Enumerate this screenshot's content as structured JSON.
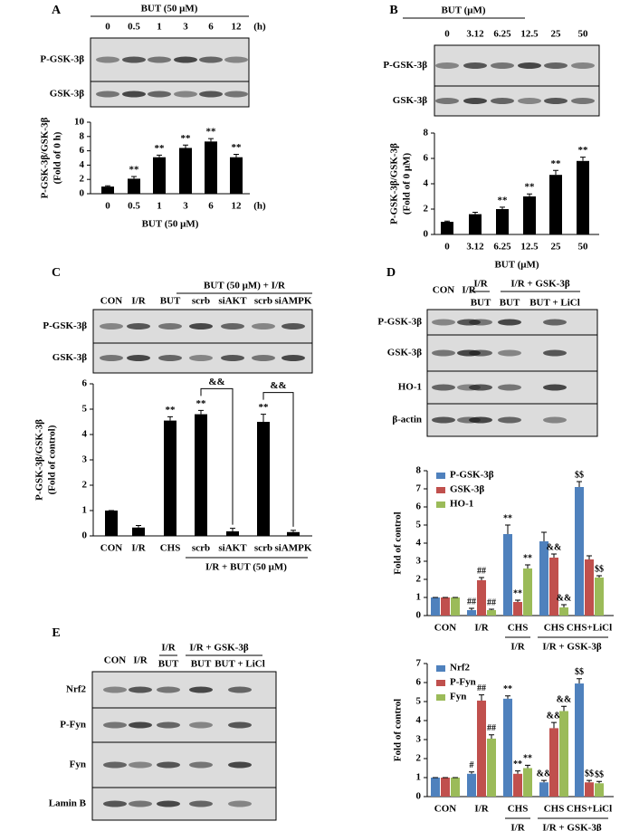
{
  "chart_data": [
    {
      "panel_label": "A",
      "type": "bar",
      "blot": {
        "header": "BUT (50 μM)",
        "lanes": [
          "0",
          "0.5",
          "1",
          "3",
          "6",
          "12"
        ],
        "lane_unit": "(h)",
        "rows": [
          "P-GSK-3β",
          "GSK-3β"
        ]
      },
      "y_label": [
        "P-GSK-3β/GSK-3β",
        "(Fold of 0 h)"
      ],
      "x_label": "BUT (50 μM)",
      "x_unit": "(h)",
      "categories": [
        "0",
        "0.5",
        "1",
        "3",
        "6",
        "12"
      ],
      "series": [
        {
          "color": "#000000",
          "values": [
            1,
            2.1,
            5.1,
            6.4,
            7.3,
            5.1
          ],
          "errors": [
            0.1,
            0.3,
            0.3,
            0.4,
            0.4,
            0.4
          ],
          "annotations": [
            null,
            "**",
            "**",
            "**",
            "**",
            "**"
          ]
        }
      ],
      "ylim": [
        0,
        10
      ],
      "yticks": [
        0,
        2,
        4,
        6,
        8,
        10
      ]
    },
    {
      "panel_label": "B",
      "type": "bar",
      "blot": {
        "header": "BUT (μM)",
        "lanes": [
          "0",
          "3.12",
          "6.25",
          "12.5",
          "25",
          "50"
        ],
        "rows": [
          "P-GSK-3β",
          "GSK-3β"
        ]
      },
      "y_label": [
        "P-GSK-3β/GSK-3β",
        "(Fold of 0 μM)"
      ],
      "x_label": "BUT (μM)",
      "categories": [
        "0",
        "3.12",
        "6.25",
        "12.5",
        "25",
        "50"
      ],
      "series": [
        {
          "color": "#000000",
          "values": [
            1,
            1.6,
            2.0,
            3.0,
            4.7,
            5.8
          ],
          "errors": [
            0.05,
            0.15,
            0.15,
            0.2,
            0.35,
            0.3
          ],
          "annotations": [
            null,
            null,
            "**",
            "**",
            "**",
            "**"
          ]
        }
      ],
      "ylim": [
        0,
        8
      ],
      "yticks": [
        0,
        2,
        4,
        6,
        8
      ]
    },
    {
      "panel_label": "C",
      "type": "bar",
      "blot": {
        "header": "BUT (50 μM) + I/R",
        "lanes": [
          "CON",
          "I/R",
          "BUT",
          "scrb",
          "siAKT",
          "scrb",
          "siAMPK"
        ],
        "rows": [
          "P-GSK-3β",
          "GSK-3β"
        ]
      },
      "y_label": [
        "P-GSK-3β/GSK-3β",
        "(Fold of control)"
      ],
      "categories": [
        "CON",
        "I/R",
        "CHS",
        "scrb",
        "siAKT",
        "scrb",
        "siAMPK"
      ],
      "x_group_labels": [
        "I/R + BUT (50 μM)"
      ],
      "series": [
        {
          "color": "#000000",
          "values": [
            1,
            0.33,
            4.55,
            4.8,
            0.18,
            4.5,
            0.15
          ],
          "errors": [
            0,
            0.08,
            0.15,
            0.15,
            0.12,
            0.3,
            0.07
          ],
          "annotations": [
            null,
            null,
            "**",
            "**",
            null,
            "**",
            null
          ]
        }
      ],
      "brackets": [
        "&&",
        "&&"
      ],
      "ylim": [
        0,
        6
      ],
      "yticks": [
        0,
        1,
        2,
        3,
        4,
        5,
        6
      ]
    },
    {
      "panel_label": "D",
      "type": "bar",
      "blot": {
        "lane_groups": [
          "I/R",
          "I/R + GSK-3β"
        ],
        "lanes": [
          "CON",
          "I/R",
          "BUT",
          "BUT",
          "BUT + LiCl"
        ],
        "rows": [
          "P-GSK-3β",
          "GSK-3β",
          "HO-1",
          "β-actin"
        ]
      },
      "y_label": [
        "Fold of control"
      ],
      "categories": [
        "CON",
        "I/R",
        "CHS",
        "CHS",
        "CHS+LiCl"
      ],
      "x_group_labels": [
        "I/R",
        "I/R + GSK-3β"
      ],
      "legend": "upper left",
      "series": [
        {
          "name": "P-GSK-3β",
          "color": "#4f81bd",
          "values": [
            1,
            0.3,
            4.5,
            4.1,
            7.1
          ],
          "errors": [
            0,
            0.1,
            0.5,
            0.5,
            0.3
          ],
          "annotations": [
            null,
            "##",
            "**",
            null,
            "$$"
          ]
        },
        {
          "name": "GSK-3β",
          "color": "#c0504d",
          "values": [
            1,
            1.95,
            0.75,
            3.2,
            3.1
          ],
          "errors": [
            0,
            0.15,
            0.1,
            0.2,
            0.2
          ],
          "annotations": [
            null,
            "##",
            "**",
            "&&",
            null
          ]
        },
        {
          "name": "HO-1",
          "color": "#9bbb59",
          "values": [
            1,
            0.3,
            2.6,
            0.45,
            2.1
          ],
          "errors": [
            0,
            0.05,
            0.2,
            0.15,
            0.1
          ],
          "annotations": [
            null,
            "##",
            "**",
            "&&",
            "$$"
          ]
        }
      ],
      "ylim": [
        0,
        8
      ],
      "yticks": [
        0,
        1,
        2,
        3,
        4,
        5,
        6,
        7,
        8
      ]
    },
    {
      "panel_label": "E",
      "type": "bar",
      "blot": {
        "lane_groups": [
          "I/R",
          "I/R + GSK-3β"
        ],
        "lanes": [
          "CON",
          "I/R",
          "BUT",
          "BUT",
          "BUT + LiCl"
        ],
        "rows": [
          "Nrf2",
          "P-Fyn",
          "Fyn",
          "Lamin B"
        ]
      },
      "y_label": [
        "Fold of control"
      ],
      "categories": [
        "CON",
        "I/R",
        "CHS",
        "CHS",
        "CHS+LiCl"
      ],
      "x_group_labels": [
        "I/R",
        "I/R + GSK-3β"
      ],
      "legend": "upper left",
      "series": [
        {
          "name": "Nrf2",
          "color": "#4f81bd",
          "values": [
            1,
            1.2,
            5.15,
            0.75,
            5.95
          ],
          "errors": [
            0,
            0.1,
            0.15,
            0.1,
            0.25
          ],
          "annotations": [
            null,
            "#",
            "**",
            "&&",
            "$$"
          ]
        },
        {
          "name": "P-Fyn",
          "color": "#c0504d",
          "values": [
            1,
            5.05,
            1.2,
            3.6,
            0.75
          ],
          "errors": [
            0,
            0.3,
            0.15,
            0.3,
            0.1
          ],
          "annotations": [
            null,
            "##",
            "**",
            "&&",
            "$$"
          ]
        },
        {
          "name": "Fyn",
          "color": "#9bbb59",
          "values": [
            1,
            3.05,
            1.5,
            4.5,
            0.7
          ],
          "errors": [
            0,
            0.2,
            0.15,
            0.25,
            0.1
          ],
          "annotations": [
            null,
            "##",
            "**",
            "&&",
            "$$"
          ]
        }
      ],
      "ylim": [
        0,
        7
      ],
      "yticks": [
        0,
        1,
        2,
        3,
        4,
        5,
        6,
        7
      ]
    }
  ]
}
